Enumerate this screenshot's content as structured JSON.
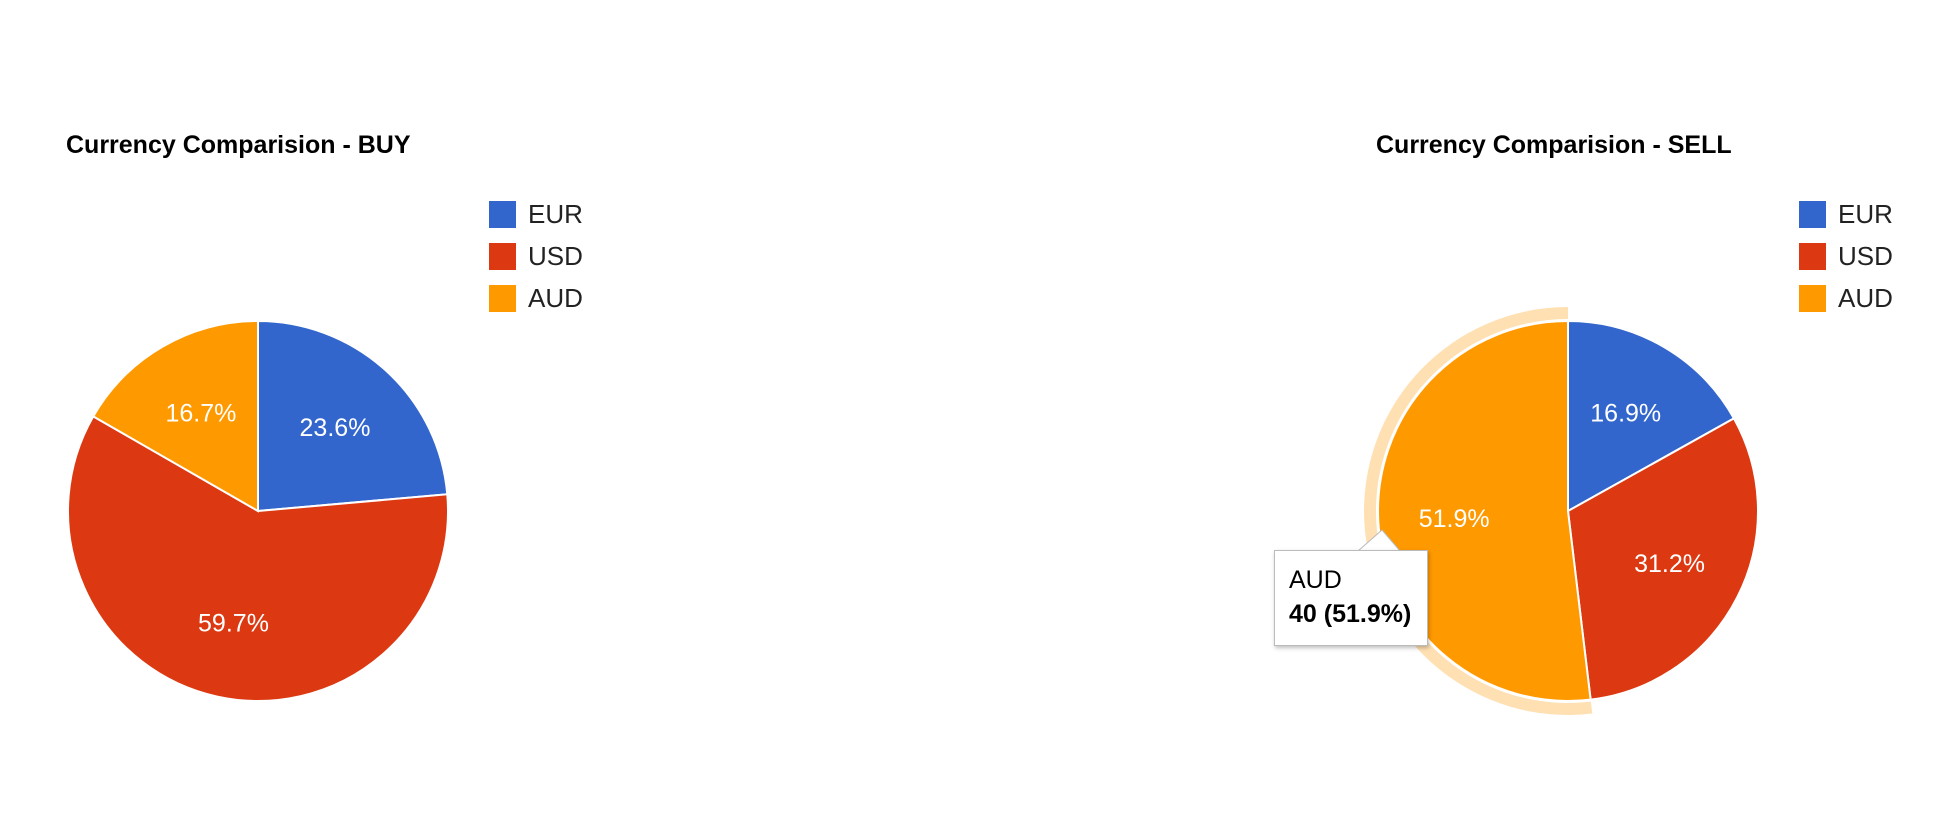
{
  "colors": {
    "EUR": "#3366cc",
    "USD": "#dc3912",
    "AUD": "#ff9900"
  },
  "chart_data": [
    {
      "type": "pie",
      "title": "Currency Comparision - BUY",
      "legend": "right",
      "categories": [
        "EUR",
        "USD",
        "AUD"
      ],
      "values": [
        23.6,
        59.7,
        16.7
      ],
      "labels": [
        "23.6%",
        "59.7%",
        "16.7%"
      ]
    },
    {
      "type": "pie",
      "title": "Currency Comparision - SELL",
      "legend": "right",
      "categories": [
        "EUR",
        "USD",
        "AUD"
      ],
      "values": [
        16.9,
        31.2,
        51.9
      ],
      "labels": [
        "16.9%",
        "31.2%",
        "51.9%"
      ],
      "highlighted": "AUD",
      "tooltip": {
        "label": "AUD",
        "value": "40 (51.9%)"
      }
    }
  ]
}
